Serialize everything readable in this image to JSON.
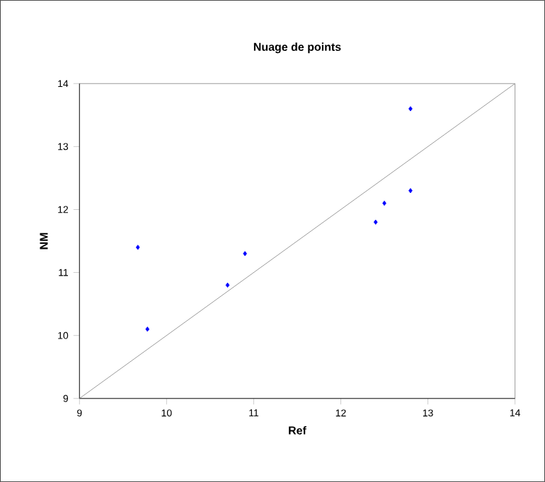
{
  "chart_data": {
    "type": "scatter",
    "title": "Nuage de points",
    "xlabel": "Ref",
    "ylabel": "NM",
    "xlim": [
      9,
      14
    ],
    "ylim": [
      9,
      14
    ],
    "xticks": [
      9,
      10,
      11,
      12,
      13,
      14
    ],
    "yticks": [
      9,
      10,
      11,
      12,
      13,
      14
    ],
    "grid": false,
    "series": [
      {
        "color": "#0000ff",
        "marker": "diamond",
        "x": [
          9.67,
          9.78,
          10.7,
          10.9,
          12.4,
          12.5,
          12.8,
          12.8
        ],
        "values": [
          11.4,
          10.1,
          10.8,
          11.3,
          11.8,
          12.1,
          13.6,
          12.3
        ]
      },
      {
        "type": "line",
        "color": "#808080",
        "marker": "none",
        "x": [
          9,
          14
        ],
        "values": [
          9,
          14
        ]
      }
    ]
  }
}
